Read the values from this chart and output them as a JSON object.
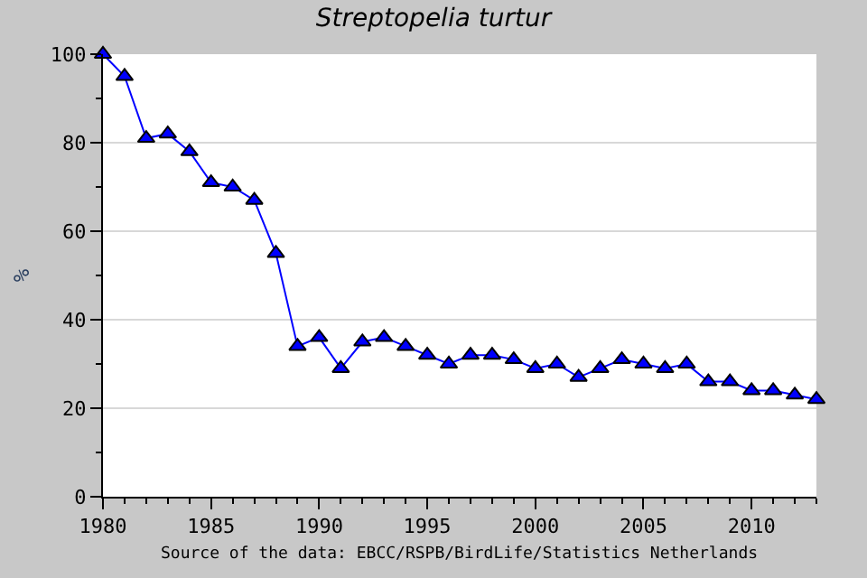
{
  "chart_data": {
    "type": "line",
    "title": "Streptopelia turtur",
    "ylabel": "%",
    "x": [
      1980,
      1981,
      1982,
      1983,
      1984,
      1985,
      1986,
      1987,
      1988,
      1989,
      1990,
      1991,
      1992,
      1993,
      1994,
      1995,
      1996,
      1997,
      1998,
      1999,
      2000,
      2001,
      2002,
      2003,
      2004,
      2005,
      2006,
      2007,
      2008,
      2009,
      2010,
      2011,
      2012,
      2013
    ],
    "series": [
      {
        "color": "#0000ff",
        "values": [
          100,
          95,
          81,
          82,
          78,
          71,
          70,
          67,
          55,
          34,
          36,
          29,
          35,
          36,
          34,
          32,
          30,
          32,
          32,
          31,
          29,
          30,
          27,
          29,
          31,
          30,
          29,
          30,
          26,
          26,
          24,
          24,
          23,
          22
        ]
      }
    ],
    "xlim": [
      1980,
      2013
    ],
    "xticks": [
      1980,
      1985,
      1990,
      1995,
      2000,
      2005,
      2010
    ],
    "ylim": [
      0,
      100
    ],
    "yticks": [
      0,
      20,
      40,
      60,
      80,
      100
    ],
    "grid": "y",
    "legend": false,
    "marker": "triangle",
    "line_style": "solid",
    "annotations": [
      "Source of the data: EBCC/RSPB/BirdLife/Statistics Netherlands"
    ]
  }
}
